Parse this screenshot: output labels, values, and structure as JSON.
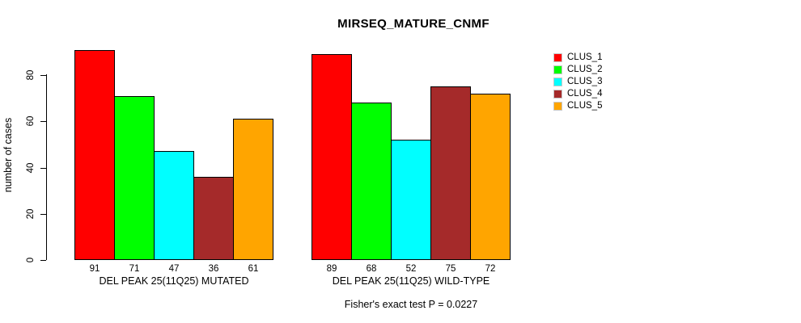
{
  "chart_data": {
    "type": "bar",
    "title": "MIRSEQ_MATURE_CNMF",
    "ylabel": "number of cases",
    "xlabel": "",
    "ylim": [
      0,
      91
    ],
    "yticks": [
      0,
      20,
      40,
      60,
      80
    ],
    "grid": false,
    "legend_position": "right",
    "categories": [
      "DEL PEAK 25(11Q25) MUTATED",
      "DEL PEAK 25(11Q25) WILD-TYPE"
    ],
    "series": [
      {
        "name": "CLUS_1",
        "color": "#FF0000",
        "values": [
          91,
          89
        ]
      },
      {
        "name": "CLUS_2",
        "color": "#00FF00",
        "values": [
          71,
          68
        ]
      },
      {
        "name": "CLUS_3",
        "color": "#00FFFF",
        "values": [
          47,
          52
        ]
      },
      {
        "name": "CLUS_4",
        "color": "#A52A2A",
        "values": [
          36,
          75
        ]
      },
      {
        "name": "CLUS_5",
        "color": "#FFA500",
        "values": [
          61,
          72
        ]
      }
    ],
    "annotation": "Fisher's exact test P = 0.0227"
  },
  "colors": {
    "background": "#FFFFFF",
    "bar_border": "#000000",
    "axis": "#000000",
    "text": "#000000"
  }
}
